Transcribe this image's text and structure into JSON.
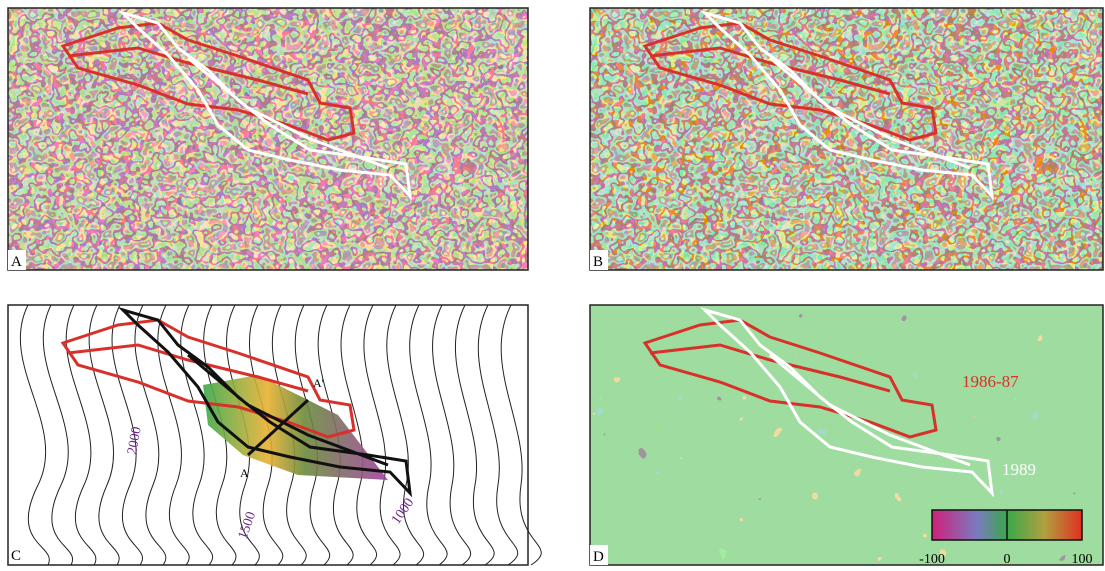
{
  "panels": [
    {
      "label": "A"
    },
    {
      "label": "B"
    },
    {
      "label": "C",
      "contour_labels": [
        2000,
        1500,
        1000
      ],
      "profile_labels": [
        "A",
        "A'"
      ]
    },
    {
      "label": "D",
      "flow_labels": [
        "1986-87",
        "1989"
      ],
      "colorbar": {
        "ticks": [
          -100,
          0,
          100
        ]
      }
    }
  ]
}
